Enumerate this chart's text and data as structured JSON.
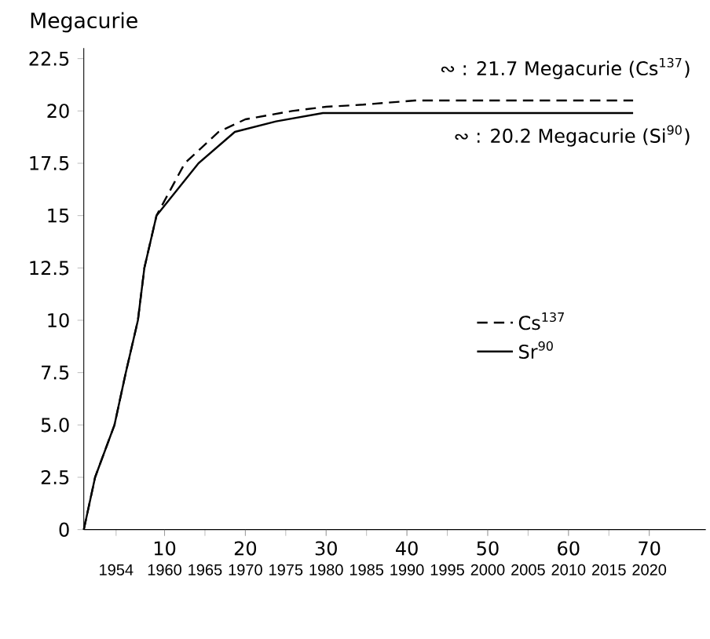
{
  "chart_data": {
    "type": "line",
    "ylabel": "Megacurie",
    "xlim": [
      1950,
      2027
    ],
    "ylim": [
      0,
      23
    ],
    "xticks": [
      1954,
      1960,
      1965,
      1970,
      1975,
      1980,
      1985,
      1990,
      1995,
      2000,
      2005,
      2010,
      2015,
      2020
    ],
    "x2lim": [
      0,
      77
    ],
    "x2ticks": [
      10,
      20,
      30,
      40,
      50,
      60,
      70
    ],
    "yticks": [
      0,
      2.5,
      {
        "value": 5,
        "label": "5.0"
      },
      7.5,
      10,
      12.5,
      15,
      17.5,
      20,
      22.5
    ],
    "legend": "right",
    "marker": "none",
    "series": [
      {
        "name": "Cs$^{137}$",
        "color": "#000000",
        "line_style": "dashed",
        "x": [
          1950,
          1951.4,
          1953.8,
          1955.2,
          1956.7,
          1957.5,
          1959,
          1962.5,
          1966.7,
          1970,
          1975.8,
          1980,
          1984.6,
          1991,
          2000,
          2010,
          2018
        ],
        "values": [
          0,
          2.5,
          5,
          7.5,
          10,
          12.5,
          15,
          17.5,
          19,
          19.6,
          20,
          20.2,
          20.3,
          20.5,
          20.5,
          20.5,
          20.5
        ]
      },
      {
        "name": "Sr$^{90}$",
        "color": "#000000",
        "line_style": "solid",
        "x": [
          1950,
          1951.4,
          1953.8,
          1955.2,
          1956.7,
          1957.5,
          1959,
          1964.2,
          1968.7,
          1973.8,
          1979.6,
          1990,
          2000,
          2010,
          2018
        ],
        "values": [
          0,
          2.5,
          5,
          7.5,
          10,
          12.5,
          15,
          17.5,
          19,
          19.5,
          19.9,
          19.9,
          19.9,
          19.9,
          19.9
        ]
      }
    ],
    "annotations": [
      "∾ : 21.7 Megacurie (Cs$^{137}$)",
      "∾ : 20.2 Megacurie (Si$^{90}$)"
    ]
  }
}
